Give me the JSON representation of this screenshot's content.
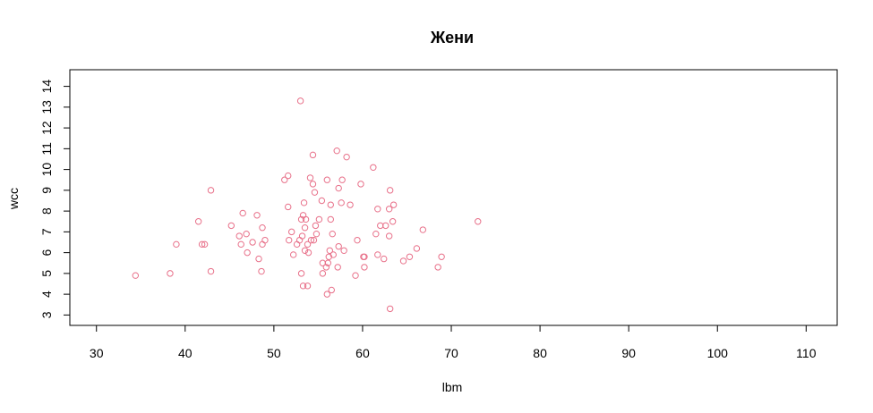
{
  "chart_data": {
    "type": "scatter",
    "title": "Жени",
    "xlabel": "lbm",
    "ylabel": "wcc",
    "xlim": [
      27,
      113.5
    ],
    "ylim": [
      2.5,
      14.8
    ],
    "x_ticks": [
      30,
      40,
      50,
      60,
      70,
      80,
      90,
      100,
      110
    ],
    "y_ticks": [
      3,
      4,
      5,
      6,
      7,
      8,
      9,
      10,
      11,
      12,
      13,
      14
    ],
    "marker": "open-circle",
    "point_color": "#e8718a",
    "grid": false,
    "legend": "none",
    "points": [
      [
        34.4,
        4.9
      ],
      [
        38.3,
        5.0
      ],
      [
        39.0,
        6.4
      ],
      [
        41.5,
        7.5
      ],
      [
        41.9,
        6.4
      ],
      [
        42.2,
        6.4
      ],
      [
        42.9,
        9.0
      ],
      [
        42.9,
        5.1
      ],
      [
        45.2,
        7.3
      ],
      [
        46.1,
        6.8
      ],
      [
        46.3,
        6.4
      ],
      [
        46.5,
        7.9
      ],
      [
        46.9,
        6.9
      ],
      [
        47.0,
        6.0
      ],
      [
        47.6,
        6.5
      ],
      [
        48.1,
        7.8
      ],
      [
        48.3,
        5.7
      ],
      [
        48.6,
        5.1
      ],
      [
        48.7,
        7.2
      ],
      [
        48.7,
        6.4
      ],
      [
        49.0,
        6.6
      ],
      [
        51.2,
        9.5
      ],
      [
        51.6,
        9.7
      ],
      [
        51.6,
        8.2
      ],
      [
        51.7,
        6.6
      ],
      [
        52.0,
        7.0
      ],
      [
        52.2,
        5.9
      ],
      [
        52.6,
        6.4
      ],
      [
        52.9,
        6.6
      ],
      [
        53.0,
        13.3
      ],
      [
        53.1,
        5.0
      ],
      [
        53.1,
        7.6
      ],
      [
        53.2,
        6.8
      ],
      [
        53.3,
        7.8
      ],
      [
        53.3,
        4.4
      ],
      [
        53.4,
        8.4
      ],
      [
        53.5,
        7.2
      ],
      [
        53.5,
        6.1
      ],
      [
        53.6,
        7.6
      ],
      [
        53.8,
        6.4
      ],
      [
        53.8,
        4.4
      ],
      [
        53.9,
        6.0
      ],
      [
        54.1,
        9.6
      ],
      [
        54.2,
        6.6
      ],
      [
        54.4,
        10.7
      ],
      [
        54.4,
        9.3
      ],
      [
        54.5,
        6.6
      ],
      [
        54.6,
        8.9
      ],
      [
        54.7,
        7.3
      ],
      [
        54.8,
        6.9
      ],
      [
        55.1,
        7.6
      ],
      [
        55.4,
        8.5
      ],
      [
        55.5,
        5.5
      ],
      [
        55.5,
        5.0
      ],
      [
        55.9,
        5.3
      ],
      [
        56.0,
        9.5
      ],
      [
        56.0,
        4.0
      ],
      [
        56.1,
        5.5
      ],
      [
        56.2,
        5.8
      ],
      [
        56.3,
        6.1
      ],
      [
        56.4,
        7.6
      ],
      [
        56.4,
        8.3
      ],
      [
        56.5,
        4.2
      ],
      [
        56.6,
        6.9
      ],
      [
        56.7,
        5.9
      ],
      [
        57.1,
        10.9
      ],
      [
        57.2,
        5.3
      ],
      [
        57.3,
        9.1
      ],
      [
        57.3,
        6.3
      ],
      [
        57.6,
        8.4
      ],
      [
        57.7,
        9.5
      ],
      [
        57.9,
        6.1
      ],
      [
        58.2,
        10.6
      ],
      [
        58.6,
        8.3
      ],
      [
        59.2,
        4.9
      ],
      [
        59.4,
        6.6
      ],
      [
        59.8,
        9.3
      ],
      [
        60.1,
        5.8
      ],
      [
        60.2,
        5.8
      ],
      [
        60.2,
        5.3
      ],
      [
        61.2,
        10.1
      ],
      [
        61.5,
        6.9
      ],
      [
        61.7,
        8.1
      ],
      [
        61.7,
        5.9
      ],
      [
        62.0,
        7.3
      ],
      [
        62.4,
        5.7
      ],
      [
        62.6,
        7.3
      ],
      [
        63.0,
        8.1
      ],
      [
        63.0,
        6.8
      ],
      [
        63.1,
        9.0
      ],
      [
        63.1,
        3.3
      ],
      [
        63.4,
        7.5
      ],
      [
        63.5,
        8.3
      ],
      [
        64.6,
        5.6
      ],
      [
        65.3,
        5.8
      ],
      [
        66.1,
        6.2
      ],
      [
        66.8,
        7.1
      ],
      [
        68.5,
        5.3
      ],
      [
        68.9,
        5.8
      ],
      [
        73.0,
        7.5
      ]
    ]
  }
}
